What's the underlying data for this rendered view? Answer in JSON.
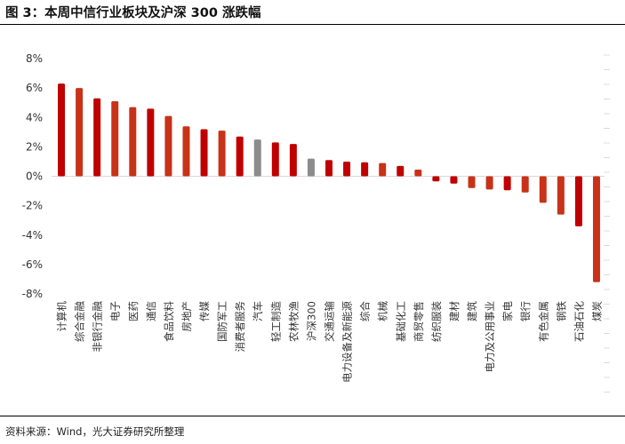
{
  "figure": {
    "title": "图 3：本周中信行业板块及沪深 300 涨跌幅",
    "source": "资料来源：Wind，光大证券研究所整理"
  },
  "chart_data": {
    "type": "bar",
    "title": "",
    "xlabel": "",
    "ylabel": "",
    "ylim": [
      -8,
      8
    ],
    "y_ticks": [
      -8,
      -6,
      -4,
      -2,
      0,
      2,
      4,
      6,
      8
    ],
    "y_tick_format": "percent",
    "grid": false,
    "legend": "none",
    "categories": [
      "计算机",
      "综合金融",
      "非银行金融",
      "电子",
      "医药",
      "通信",
      "食品饮料",
      "房地产",
      "传媒",
      "国防军工",
      "消费者服务",
      "汽车",
      "轻工制造",
      "农林牧渔",
      "沪深300",
      "交通运输",
      "电力设备及新能源",
      "综合",
      "机械",
      "基础化工",
      "商贸零售",
      "纺织服装",
      "建材",
      "建筑",
      "电力及公用事业",
      "家电",
      "银行",
      "有色金属",
      "钢铁",
      "石油石化",
      "煤炭"
    ],
    "values": [
      6.3,
      6.0,
      5.3,
      5.1,
      4.7,
      4.6,
      4.1,
      3.4,
      3.2,
      3.1,
      2.7,
      2.5,
      2.3,
      2.2,
      1.2,
      1.1,
      1.0,
      0.95,
      0.9,
      0.7,
      0.45,
      -0.35,
      -0.5,
      -0.8,
      -0.9,
      -0.95,
      -1.1,
      -1.8,
      -2.6,
      -3.4,
      -7.2
    ],
    "colors": [
      "#c00000",
      "#c83218",
      "#c00000",
      "#c83218",
      "#c83218",
      "#c00000",
      "#c83218",
      "#c83218",
      "#c00000",
      "#c83218",
      "#c00000",
      "#8c8c8c",
      "#c00000",
      "#c00000",
      "#8c8c8c",
      "#c00000",
      "#c00000",
      "#c00000",
      "#c83218",
      "#c00000",
      "#c83218",
      "#c00000",
      "#c00000",
      "#c83218",
      "#c83218",
      "#c00000",
      "#c83218",
      "#c83218",
      "#c83218",
      "#c00000",
      "#c83218"
    ]
  }
}
